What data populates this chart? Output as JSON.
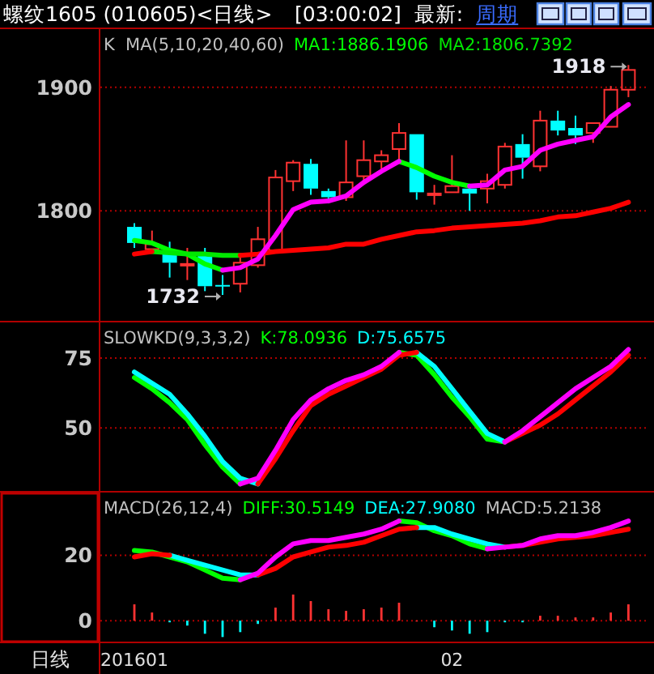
{
  "chart_data": [
    {
      "type": "candlestick",
      "title": "螺纹1605 (010605)<日线>",
      "subtitle": "K  MA(5,10,20,40,60)",
      "annotations": [
        "[03:00:02]",
        "最新:",
        "周期",
        "1918",
        "1732"
      ],
      "categories": [
        "201601",
        null,
        null,
        null,
        null,
        null,
        null,
        null,
        null,
        null,
        null,
        null,
        null,
        null,
        null,
        null,
        null,
        null,
        "02",
        null,
        null,
        null,
        null,
        null,
        null,
        null,
        null,
        null,
        null
      ],
      "ylim": [
        1711,
        1947
      ],
      "yticks": [
        1800,
        1900
      ],
      "grid": "y",
      "tick_labels": "y",
      "legend": "top right",
      "ohlc": [
        [
          1787,
          1790,
          1770,
          1774
        ],
        [
          1769,
          1784,
          1766,
          1773
        ],
        [
          1768,
          1775,
          1746,
          1758
        ],
        [
          1756,
          1770,
          1744,
          1757
        ],
        [
          1764,
          1770,
          1735,
          1739
        ],
        [
          1740,
          1748,
          1732,
          1739
        ],
        [
          1741,
          1764,
          1734,
          1758
        ],
        [
          1756,
          1787,
          1754,
          1777
        ],
        [
          1768,
          1833,
          1767,
          1827
        ],
        [
          1824,
          1841,
          1816,
          1839
        ],
        [
          1838,
          1842,
          1813,
          1818
        ],
        [
          1816,
          1818,
          1806,
          1811
        ],
        [
          1811,
          1857,
          1808,
          1823
        ],
        [
          1828,
          1857,
          1821,
          1841
        ],
        [
          1840,
          1849,
          1834,
          1845
        ],
        [
          1850,
          1871,
          1838,
          1863
        ],
        [
          1862,
          1862,
          1809,
          1815
        ],
        [
          1813,
          1821,
          1805,
          1814
        ],
        [
          1815,
          1845,
          1815,
          1820
        ],
        [
          1818,
          1820,
          1800,
          1814
        ],
        [
          1818,
          1830,
          1806,
          1824
        ],
        [
          1821,
          1855,
          1818,
          1852
        ],
        [
          1854,
          1862,
          1826,
          1843
        ],
        [
          1836,
          1881,
          1832,
          1873
        ],
        [
          1873,
          1881,
          1861,
          1865
        ],
        [
          1867,
          1877,
          1854,
          1861
        ],
        [
          1863,
          1871,
          1855,
          1871
        ],
        [
          1868,
          1901,
          1868,
          1898
        ],
        [
          1898,
          1918,
          1892,
          1914
        ]
      ],
      "colors": [
        "#00ffff",
        "#ff3232",
        "#00ffff",
        "#ff3232",
        "#00ffff",
        "#00ffff",
        "#ff3232",
        "#ff3232",
        "#ff3232",
        "#ff3232",
        "#00ffff",
        "#00ffff",
        "#ff3232",
        "#ff3232",
        "#ff3232",
        "#ff3232",
        "#00ffff",
        "#ff3232",
        "#ff3232",
        "#00ffff",
        "#ff3232",
        "#ff3232",
        "#00ffff",
        "#ff3232",
        "#00ffff",
        "#00ffff",
        "#ff3232",
        "#ff3232",
        "#ff3232"
      ],
      "series": [
        {
          "name": "MA1:1886.1906",
          "type": "line",
          "color": "#00ff00",
          "values": [
            1776,
            1774,
            1768,
            1765,
            1757,
            1752,
            null,
            null,
            null,
            null,
            null,
            null,
            null,
            null,
            null,
            1840,
            1835,
            1828,
            1823,
            1820,
            null,
            null,
            null,
            null,
            null,
            null,
            null,
            null,
            null
          ]
        },
        {
          "name": "MA2:1806.7392",
          "type": "line",
          "color": "#00e800",
          "values": [
            null,
            1767,
            1766,
            1765,
            1765,
            1764,
            1764,
            null,
            null,
            null,
            null,
            null,
            null,
            null,
            null,
            null,
            null,
            null,
            null,
            null,
            null,
            null,
            null,
            null,
            null,
            null,
            null,
            null,
            null
          ]
        },
        {
          "type": "line",
          "color": "#ff0000",
          "values": [
            1765,
            1767,
            null,
            null,
            null,
            null,
            1764,
            1765,
            1767,
            1768,
            1769,
            1770,
            1773,
            1773,
            1777,
            1780,
            1783,
            1784,
            1786,
            1787,
            1788,
            1789,
            1790,
            1792,
            1795,
            1796,
            1799,
            1802,
            1807
          ]
        },
        {
          "type": "line",
          "color": "#ff00ff",
          "values": [
            null,
            null,
            null,
            null,
            null,
            1752,
            1754,
            1761,
            1780,
            1801,
            1807,
            1808,
            1812,
            1823,
            1832,
            1840,
            null,
            null,
            null,
            1820,
            1821,
            1833,
            1836,
            1849,
            1854,
            1857,
            1860,
            1876,
            1886
          ]
        }
      ]
    },
    {
      "type": "line",
      "subtitle": "SLOWKD(9,3,3,2)",
      "categories": [
        "201601",
        null,
        null,
        null,
        null,
        null,
        null,
        null,
        null,
        null,
        null,
        null,
        null,
        null,
        null,
        null,
        null,
        null,
        "02",
        null,
        null,
        null,
        null,
        null,
        null,
        null,
        null,
        null,
        null
      ],
      "ylim": [
        27.5,
        87.7
      ],
      "yticks": [
        50,
        75
      ],
      "grid": "y",
      "tick_labels": "y",
      "legend": "top left",
      "series": [
        {
          "name": "K:78.0936",
          "color": "#00ff00",
          "values": [
            68,
            64,
            59,
            53,
            44,
            36,
            30,
            null,
            null,
            null,
            null,
            null,
            null,
            null,
            null,
            77,
            76,
            69,
            61,
            54,
            46,
            45,
            null,
            null,
            null,
            null,
            null,
            null,
            null
          ]
        },
        {
          "name": "D:75.6575",
          "color": "#00ffff",
          "values": [
            70,
            66,
            62,
            55,
            47,
            38,
            32,
            30,
            null,
            null,
            null,
            null,
            null,
            null,
            null,
            null,
            77,
            72,
            64,
            56,
            48,
            45,
            null,
            null,
            null,
            null,
            null,
            null,
            null
          ]
        },
        {
          "color": "#ff0000",
          "values": [
            null,
            null,
            null,
            null,
            null,
            null,
            null,
            30,
            39,
            49,
            58,
            62,
            65,
            68,
            71,
            76,
            77,
            null,
            null,
            null,
            null,
            45,
            48,
            51,
            55,
            60,
            65,
            70,
            76
          ]
        },
        {
          "color": "#ff00ff",
          "values": [
            null,
            null,
            null,
            null,
            null,
            null,
            30,
            32,
            42,
            53,
            60,
            64,
            67,
            69,
            72,
            77,
            null,
            null,
            null,
            null,
            null,
            45,
            49,
            54,
            59,
            64,
            68,
            72,
            78
          ]
        }
      ]
    },
    {
      "type": "line",
      "subtitle": "MACD(26,12,4)",
      "xlabel": "日线",
      "annotations": [
        "MACD:5.2138"
      ],
      "categories": [
        "201601",
        null,
        null,
        null,
        null,
        null,
        null,
        null,
        null,
        null,
        null,
        null,
        null,
        null,
        null,
        null,
        null,
        null,
        "02",
        null,
        null,
        null,
        null,
        null,
        null,
        null,
        null,
        null,
        null
      ],
      "ylim": [
        -6.4,
        39.2
      ],
      "yticks": [
        0,
        20
      ],
      "grid": "y",
      "legend": "top right",
      "series": [
        {
          "name": "DIFF:30.5149",
          "color": "#00ff00",
          "values": [
            21.5,
            21,
            19.5,
            18,
            15.5,
            13,
            12.5,
            null,
            null,
            null,
            null,
            null,
            null,
            null,
            null,
            30.5,
            30,
            27.5,
            26,
            23.5,
            22,
            null,
            null,
            null,
            null,
            null,
            null,
            null,
            null
          ]
        },
        {
          "name": "DEA:27.9080",
          "color": "#00ffff",
          "values": [
            null,
            null,
            20,
            18.5,
            17,
            15.5,
            14,
            14,
            null,
            null,
            null,
            null,
            null,
            null,
            null,
            null,
            28.5,
            28.5,
            26.5,
            25,
            23.5,
            22.5,
            null,
            null,
            null,
            null,
            null,
            null,
            null
          ]
        },
        {
          "type": "bar",
          "values": [
            5,
            2.5,
            -0.5,
            -1.5,
            -4,
            -5,
            -3.5,
            -1,
            4,
            8,
            6,
            3.5,
            3,
            3.5,
            4,
            5.5,
            0,
            -2,
            -3,
            -4,
            -3.5,
            -0.5,
            -0.5,
            1.5,
            1.5,
            1,
            1,
            2.5,
            5
          ],
          "colors": [
            "#ff3232",
            "#ff3232",
            "#00ffff",
            "#00ffff",
            "#00ffff",
            "#00ffff",
            "#00ffff",
            "#00ffff",
            "#ff3232",
            "#ff3232",
            "#ff3232",
            "#ff3232",
            "#ff3232",
            "#ff3232",
            "#ff3232",
            "#ff3232",
            "#ff3232",
            "#00ffff",
            "#00ffff",
            "#00ffff",
            "#00ffff",
            "#00ffff",
            "#00ffff",
            "#ff3232",
            "#ff3232",
            "#ff3232",
            "#ff3232",
            "#ff3232",
            "#ff3232"
          ]
        },
        {
          "color": "#ff0000",
          "values": [
            19.5,
            20.5,
            20,
            null,
            null,
            null,
            null,
            14,
            16,
            19.5,
            21,
            22.5,
            23,
            24,
            26,
            28,
            28.5,
            null,
            null,
            null,
            null,
            22.5,
            23,
            24,
            25,
            25.5,
            26,
            27,
            28
          ]
        },
        {
          "color": "#ff00ff",
          "values": [
            null,
            null,
            null,
            null,
            null,
            null,
            12.5,
            14.5,
            19.5,
            23.5,
            24.5,
            24.5,
            25.5,
            26.5,
            28,
            30.5,
            null,
            null,
            null,
            null,
            22,
            22.5,
            23,
            25,
            26,
            26,
            27,
            28.5,
            30.5
          ]
        }
      ]
    }
  ]
}
